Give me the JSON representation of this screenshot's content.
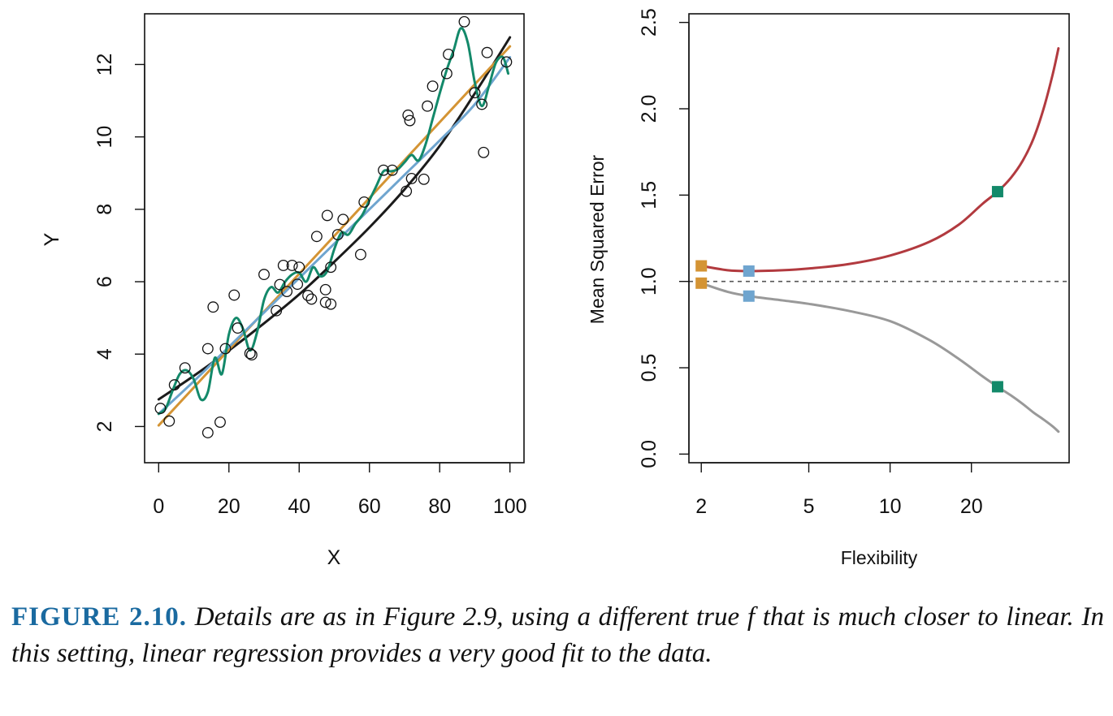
{
  "chart_data": [
    {
      "type": "scatter",
      "title": "",
      "xlabel": "X",
      "ylabel": "Y",
      "xlim": [
        -4,
        104
      ],
      "ylim": [
        1.0,
        13.4
      ],
      "xticks": [
        0,
        20,
        40,
        60,
        80,
        100
      ],
      "yticks": [
        2,
        4,
        6,
        8,
        10,
        12
      ],
      "grid": false,
      "legend": "none",
      "points": [
        [
          0.5,
          2.5
        ],
        [
          3,
          2.15
        ],
        [
          4.5,
          3.15
        ],
        [
          7.5,
          3.62
        ],
        [
          14,
          1.83
        ],
        [
          14,
          4.15
        ],
        [
          15.5,
          5.3
        ],
        [
          17.5,
          2.12
        ],
        [
          19,
          4.15
        ],
        [
          21.5,
          5.63
        ],
        [
          22.5,
          4.72
        ],
        [
          26,
          4.02
        ],
        [
          26.5,
          3.98
        ],
        [
          30,
          6.2
        ],
        [
          33.5,
          5.2
        ],
        [
          34.5,
          5.92
        ],
        [
          35.5,
          6.45
        ],
        [
          36.5,
          5.73
        ],
        [
          38,
          6.45
        ],
        [
          39.5,
          5.93
        ],
        [
          40,
          6.4
        ],
        [
          42.5,
          5.62
        ],
        [
          43.5,
          5.52
        ],
        [
          45,
          7.25
        ],
        [
          47.5,
          5.78
        ],
        [
          47.5,
          5.43
        ],
        [
          48,
          7.83
        ],
        [
          49,
          5.38
        ],
        [
          49,
          6.4
        ],
        [
          51,
          7.3
        ],
        [
          52.5,
          7.72
        ],
        [
          57.5,
          6.75
        ],
        [
          58.5,
          8.2
        ],
        [
          64,
          9.08
        ],
        [
          66.5,
          9.08
        ],
        [
          70.5,
          8.5
        ],
        [
          71,
          10.6
        ],
        [
          71.5,
          10.45
        ],
        [
          72,
          8.85
        ],
        [
          75.5,
          8.83
        ],
        [
          76.5,
          10.85
        ],
        [
          78,
          11.4
        ],
        [
          82,
          11.75
        ],
        [
          82.5,
          12.28
        ],
        [
          87,
          13.18
        ],
        [
          90,
          11.22
        ],
        [
          92,
          10.9
        ],
        [
          92.5,
          9.57
        ],
        [
          93.5,
          12.33
        ],
        [
          99,
          12.07
        ]
      ],
      "series": [
        {
          "color": "#1b1b1b",
          "x": [
            0,
            10,
            20,
            30,
            40,
            50,
            60,
            70,
            80,
            90,
            100
          ],
          "y": [
            2.75,
            3.4,
            4.1,
            4.85,
            5.65,
            6.55,
            7.5,
            8.55,
            9.75,
            11.2,
            12.75
          ]
        },
        {
          "color": "#d49434",
          "x": [
            0,
            100
          ],
          "y": [
            2.03,
            12.5
          ]
        },
        {
          "color": "#6fa5cf",
          "x": [
            0,
            10,
            20,
            30,
            40,
            50,
            60,
            70,
            80,
            90,
            100
          ],
          "y": [
            2.35,
            3.25,
            4.2,
            5.15,
            6.1,
            7.05,
            8.0,
            8.95,
            9.9,
            10.9,
            12.2
          ]
        },
        {
          "color": "#13896a",
          "x": [
            0,
            2,
            4,
            6,
            8,
            10,
            12,
            14,
            16,
            18,
            20,
            22,
            24,
            26,
            28,
            30,
            32,
            34,
            36,
            38,
            40,
            42,
            44,
            46,
            48,
            50,
            52,
            54,
            56,
            58,
            60,
            62,
            64,
            66,
            68,
            70,
            72,
            74,
            76,
            78,
            80,
            82,
            84,
            86,
            88,
            90,
            92,
            94,
            96,
            98,
            99.5
          ],
          "y": [
            2.35,
            2.5,
            3.0,
            3.45,
            3.55,
            3.3,
            2.75,
            2.95,
            3.9,
            3.45,
            4.55,
            5.0,
            4.7,
            4.1,
            4.6,
            5.5,
            5.85,
            5.7,
            6.0,
            6.2,
            6.25,
            6.0,
            6.4,
            6.15,
            6.3,
            6.9,
            7.35,
            7.3,
            7.6,
            7.85,
            8.25,
            8.65,
            9.05,
            9.05,
            9.1,
            9.3,
            9.5,
            9.35,
            9.8,
            10.5,
            11.2,
            11.85,
            12.4,
            13.0,
            12.6,
            11.5,
            10.85,
            11.4,
            12.05,
            12.2,
            11.75
          ]
        }
      ]
    },
    {
      "type": "line",
      "title": "",
      "xlabel": "Flexibility",
      "ylabel": "Mean Squared Error",
      "xscale": "log",
      "xlim": [
        1.8,
        46
      ],
      "ylim": [
        -0.05,
        2.55
      ],
      "xticks": [
        2,
        5,
        10,
        20
      ],
      "yticks": [
        0.0,
        0.5,
        1.0,
        1.5,
        2.0,
        2.5
      ],
      "ytick_labels": [
        "0.0",
        "0.5",
        "1.0",
        "1.5",
        "2.0",
        "2.5"
      ],
      "grid": false,
      "legend": "none",
      "reference_line": {
        "y": 1.0,
        "style": "dashed",
        "color": "#555555"
      },
      "series": [
        {
          "color": "#b23a3f",
          "x": [
            2,
            2.5,
            3,
            4,
            5,
            7,
            10,
            14,
            18,
            22,
            25,
            28,
            31,
            34,
            37,
            40,
            42
          ],
          "y": [
            1.09,
            1.065,
            1.06,
            1.065,
            1.075,
            1.1,
            1.15,
            1.23,
            1.33,
            1.45,
            1.52,
            1.6,
            1.7,
            1.83,
            2.0,
            2.2,
            2.35
          ]
        },
        {
          "color": "#999999",
          "x": [
            2,
            2.5,
            3,
            4,
            5,
            7,
            10,
            14,
            18,
            22,
            25,
            28,
            31,
            34,
            37,
            40,
            42
          ],
          "y": [
            0.99,
            0.94,
            0.915,
            0.89,
            0.87,
            0.83,
            0.77,
            0.66,
            0.55,
            0.45,
            0.39,
            0.34,
            0.29,
            0.24,
            0.2,
            0.16,
            0.13
          ]
        }
      ],
      "markers": [
        {
          "x": 2,
          "y": 1.09,
          "color": "#d49434"
        },
        {
          "x": 2,
          "y": 0.99,
          "color": "#d49434"
        },
        {
          "x": 3,
          "y": 1.06,
          "color": "#6fa5cf"
        },
        {
          "x": 3,
          "y": 0.915,
          "color": "#6fa5cf"
        },
        {
          "x": 25,
          "y": 1.52,
          "color": "#13896a"
        },
        {
          "x": 25,
          "y": 0.39,
          "color": "#13896a"
        }
      ]
    }
  ],
  "caption": {
    "label": "FIGURE 2.10.",
    "text": "Details are as in Figure 2.9, using a different true f that is much closer to linear. In this setting, linear regression provides a very good fit to the data."
  }
}
